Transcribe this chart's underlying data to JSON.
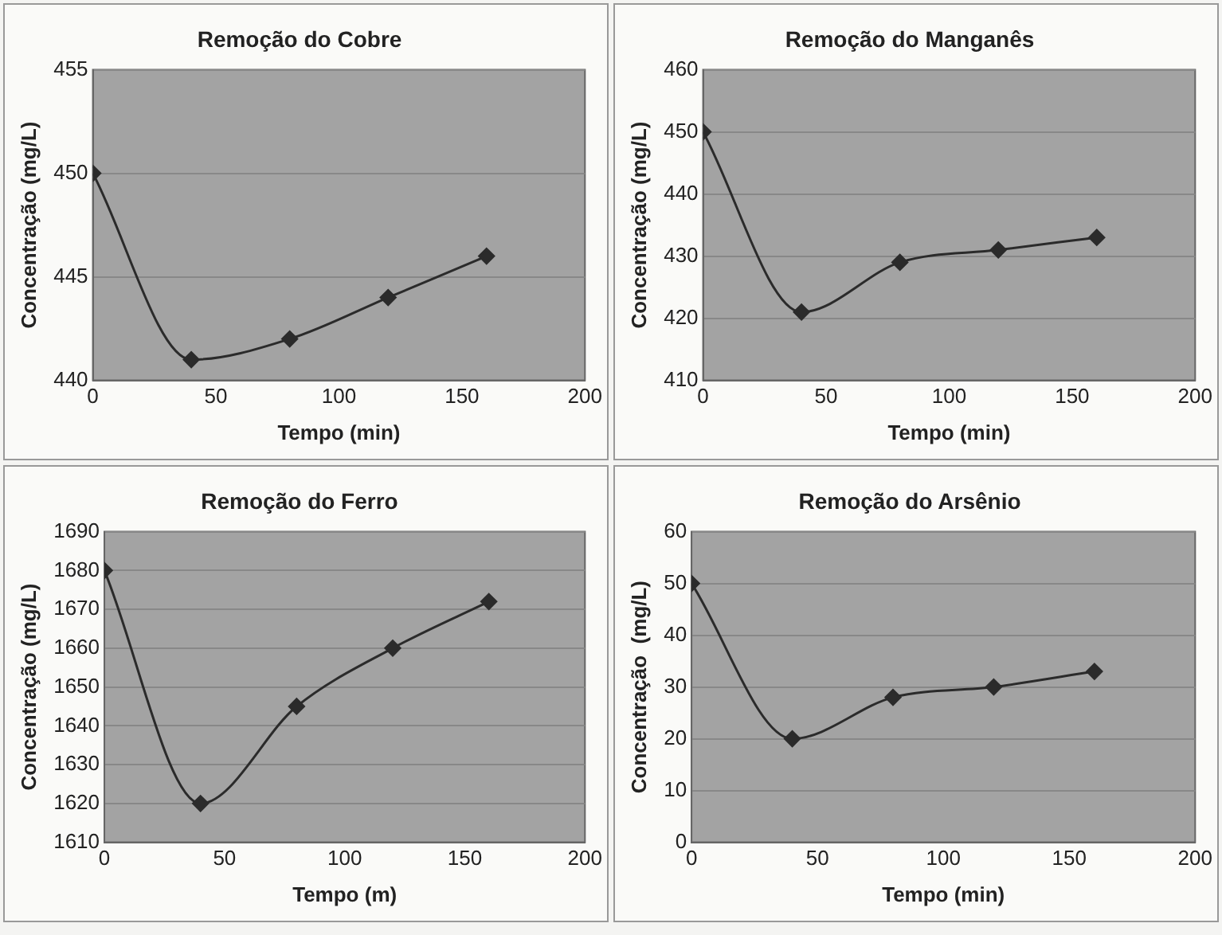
{
  "chart_data": [
    {
      "type": "line",
      "title": "Remoção do Cobre",
      "xlabel": "Tempo (min)",
      "ylabel": "Concentração (mg/L)",
      "x": [
        0,
        40,
        80,
        120,
        160
      ],
      "series": [
        {
          "color": "#2b2b2b",
          "values": [
            450,
            441,
            442,
            444,
            446
          ]
        }
      ],
      "xlim": [
        0,
        200
      ],
      "xticks": [
        0,
        50,
        100,
        150,
        200
      ],
      "ylim": [
        440,
        455
      ],
      "yticks": [
        440,
        445,
        450,
        455
      ],
      "grid": "y",
      "legend": false,
      "marker": "diamond",
      "line_style": "solid"
    },
    {
      "type": "line",
      "title": "Remoção do Manganês",
      "xlabel": "Tempo (min)",
      "ylabel": "Concentração (mg/L)",
      "x": [
        0,
        40,
        80,
        120,
        160
      ],
      "series": [
        {
          "color": "#2b2b2b",
          "values": [
            450,
            421,
            429,
            431,
            433
          ]
        }
      ],
      "xlim": [
        0,
        200
      ],
      "xticks": [
        0,
        50,
        100,
        150,
        200
      ],
      "ylim": [
        410,
        460
      ],
      "yticks": [
        410,
        420,
        430,
        440,
        450,
        460
      ],
      "grid": "y",
      "legend": false,
      "marker": "diamond",
      "line_style": "solid"
    },
    {
      "type": "line",
      "title": "Remoção do Ferro",
      "xlabel": "Tempo (m)",
      "ylabel": "Concentração (mg/L)",
      "x": [
        0,
        40,
        80,
        120,
        160
      ],
      "series": [
        {
          "color": "#2b2b2b",
          "values": [
            1680,
            1620,
            1645,
            1660,
            1672
          ]
        }
      ],
      "xlim": [
        0,
        200
      ],
      "xticks": [
        0,
        50,
        100,
        150,
        200
      ],
      "ylim": [
        1610,
        1690
      ],
      "yticks": [
        1610,
        1620,
        1630,
        1640,
        1650,
        1660,
        1670,
        1680,
        1690
      ],
      "grid": "y",
      "legend": false,
      "marker": "diamond",
      "line_style": "solid"
    },
    {
      "type": "line",
      "title": "Remoção do Arsênio",
      "xlabel": "Tempo (min)",
      "ylabel": "Concentração  (mg/L)",
      "x": [
        0,
        40,
        80,
        120,
        160
      ],
      "series": [
        {
          "color": "#2b2b2b",
          "values": [
            50,
            20,
            28,
            30,
            33
          ]
        }
      ],
      "xlim": [
        0,
        200
      ],
      "xticks": [
        0,
        50,
        100,
        150,
        200
      ],
      "ylim": [
        0,
        60
      ],
      "yticks": [
        0,
        10,
        20,
        30,
        40,
        50,
        60
      ],
      "grid": "y",
      "legend": false,
      "marker": "diamond",
      "line_style": "solid"
    }
  ]
}
